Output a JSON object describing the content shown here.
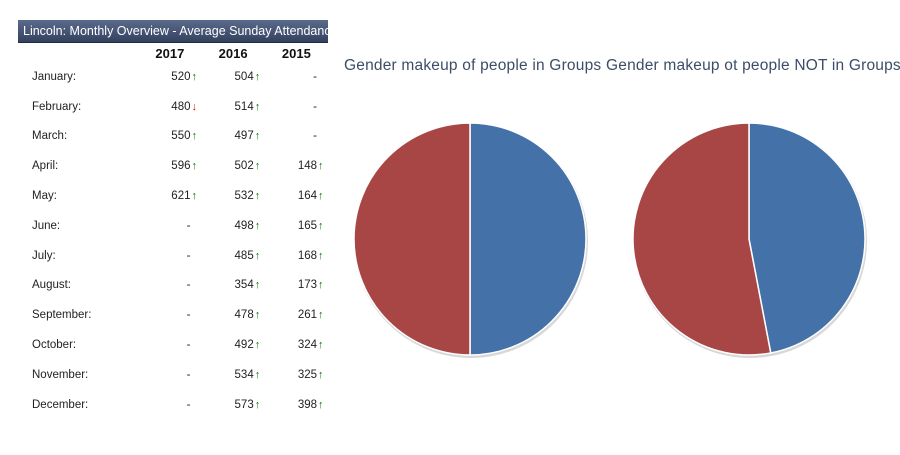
{
  "panel": {
    "title": "Lincoln: Monthly Overview - Average Sunday Attendance",
    "columns": [
      "2017",
      "2016",
      "2015"
    ],
    "rows": [
      {
        "month": "January:",
        "y2017": {
          "v": "520",
          "dir": "up"
        },
        "y2016": {
          "v": "504",
          "dir": "up"
        },
        "y2015": {
          "v": "-",
          "dir": ""
        }
      },
      {
        "month": "February:",
        "y2017": {
          "v": "480",
          "dir": "down"
        },
        "y2016": {
          "v": "514",
          "dir": "up"
        },
        "y2015": {
          "v": "-",
          "dir": ""
        }
      },
      {
        "month": "March:",
        "y2017": {
          "v": "550",
          "dir": "up"
        },
        "y2016": {
          "v": "497",
          "dir": "up"
        },
        "y2015": {
          "v": "-",
          "dir": ""
        }
      },
      {
        "month": "April:",
        "y2017": {
          "v": "596",
          "dir": "up"
        },
        "y2016": {
          "v": "502",
          "dir": "up"
        },
        "y2015": {
          "v": "148",
          "dir": "up"
        }
      },
      {
        "month": "May:",
        "y2017": {
          "v": "621",
          "dir": "up"
        },
        "y2016": {
          "v": "532",
          "dir": "up"
        },
        "y2015": {
          "v": "164",
          "dir": "up"
        }
      },
      {
        "month": "June:",
        "y2017": {
          "v": "-",
          "dir": ""
        },
        "y2016": {
          "v": "498",
          "dir": "up"
        },
        "y2015": {
          "v": "165",
          "dir": "up"
        }
      },
      {
        "month": "July:",
        "y2017": {
          "v": "-",
          "dir": ""
        },
        "y2016": {
          "v": "485",
          "dir": "up"
        },
        "y2015": {
          "v": "168",
          "dir": "up"
        }
      },
      {
        "month": "August:",
        "y2017": {
          "v": "-",
          "dir": ""
        },
        "y2016": {
          "v": "354",
          "dir": "up"
        },
        "y2015": {
          "v": "173",
          "dir": "up"
        }
      },
      {
        "month": "September:",
        "y2017": {
          "v": "-",
          "dir": ""
        },
        "y2016": {
          "v": "478",
          "dir": "up"
        },
        "y2015": {
          "v": "261",
          "dir": "up"
        }
      },
      {
        "month": "October:",
        "y2017": {
          "v": "-",
          "dir": ""
        },
        "y2016": {
          "v": "492",
          "dir": "up"
        },
        "y2015": {
          "v": "324",
          "dir": "up"
        }
      },
      {
        "month": "November:",
        "y2017": {
          "v": "-",
          "dir": ""
        },
        "y2016": {
          "v": "534",
          "dir": "up"
        },
        "y2015": {
          "v": "325",
          "dir": "up"
        }
      },
      {
        "month": "December:",
        "y2017": {
          "v": "-",
          "dir": ""
        },
        "y2016": {
          "v": "573",
          "dir": "up"
        },
        "y2015": {
          "v": "398",
          "dir": "up"
        }
      }
    ],
    "arrow_up_color": "#127612",
    "arrow_down_color": "#d11515"
  },
  "chart_data": [
    {
      "type": "pie",
      "title": "Gender makeup of people in Groups",
      "slices": [
        {
          "value": 50,
          "color": "#4472a8"
        },
        {
          "value": 50,
          "color": "#a84646"
        }
      ]
    },
    {
      "type": "pie",
      "title": "Gender makeup ot people NOT in Groups",
      "slices": [
        {
          "value": 47,
          "color": "#4472a8"
        },
        {
          "value": 53,
          "color": "#a84646"
        }
      ]
    }
  ]
}
